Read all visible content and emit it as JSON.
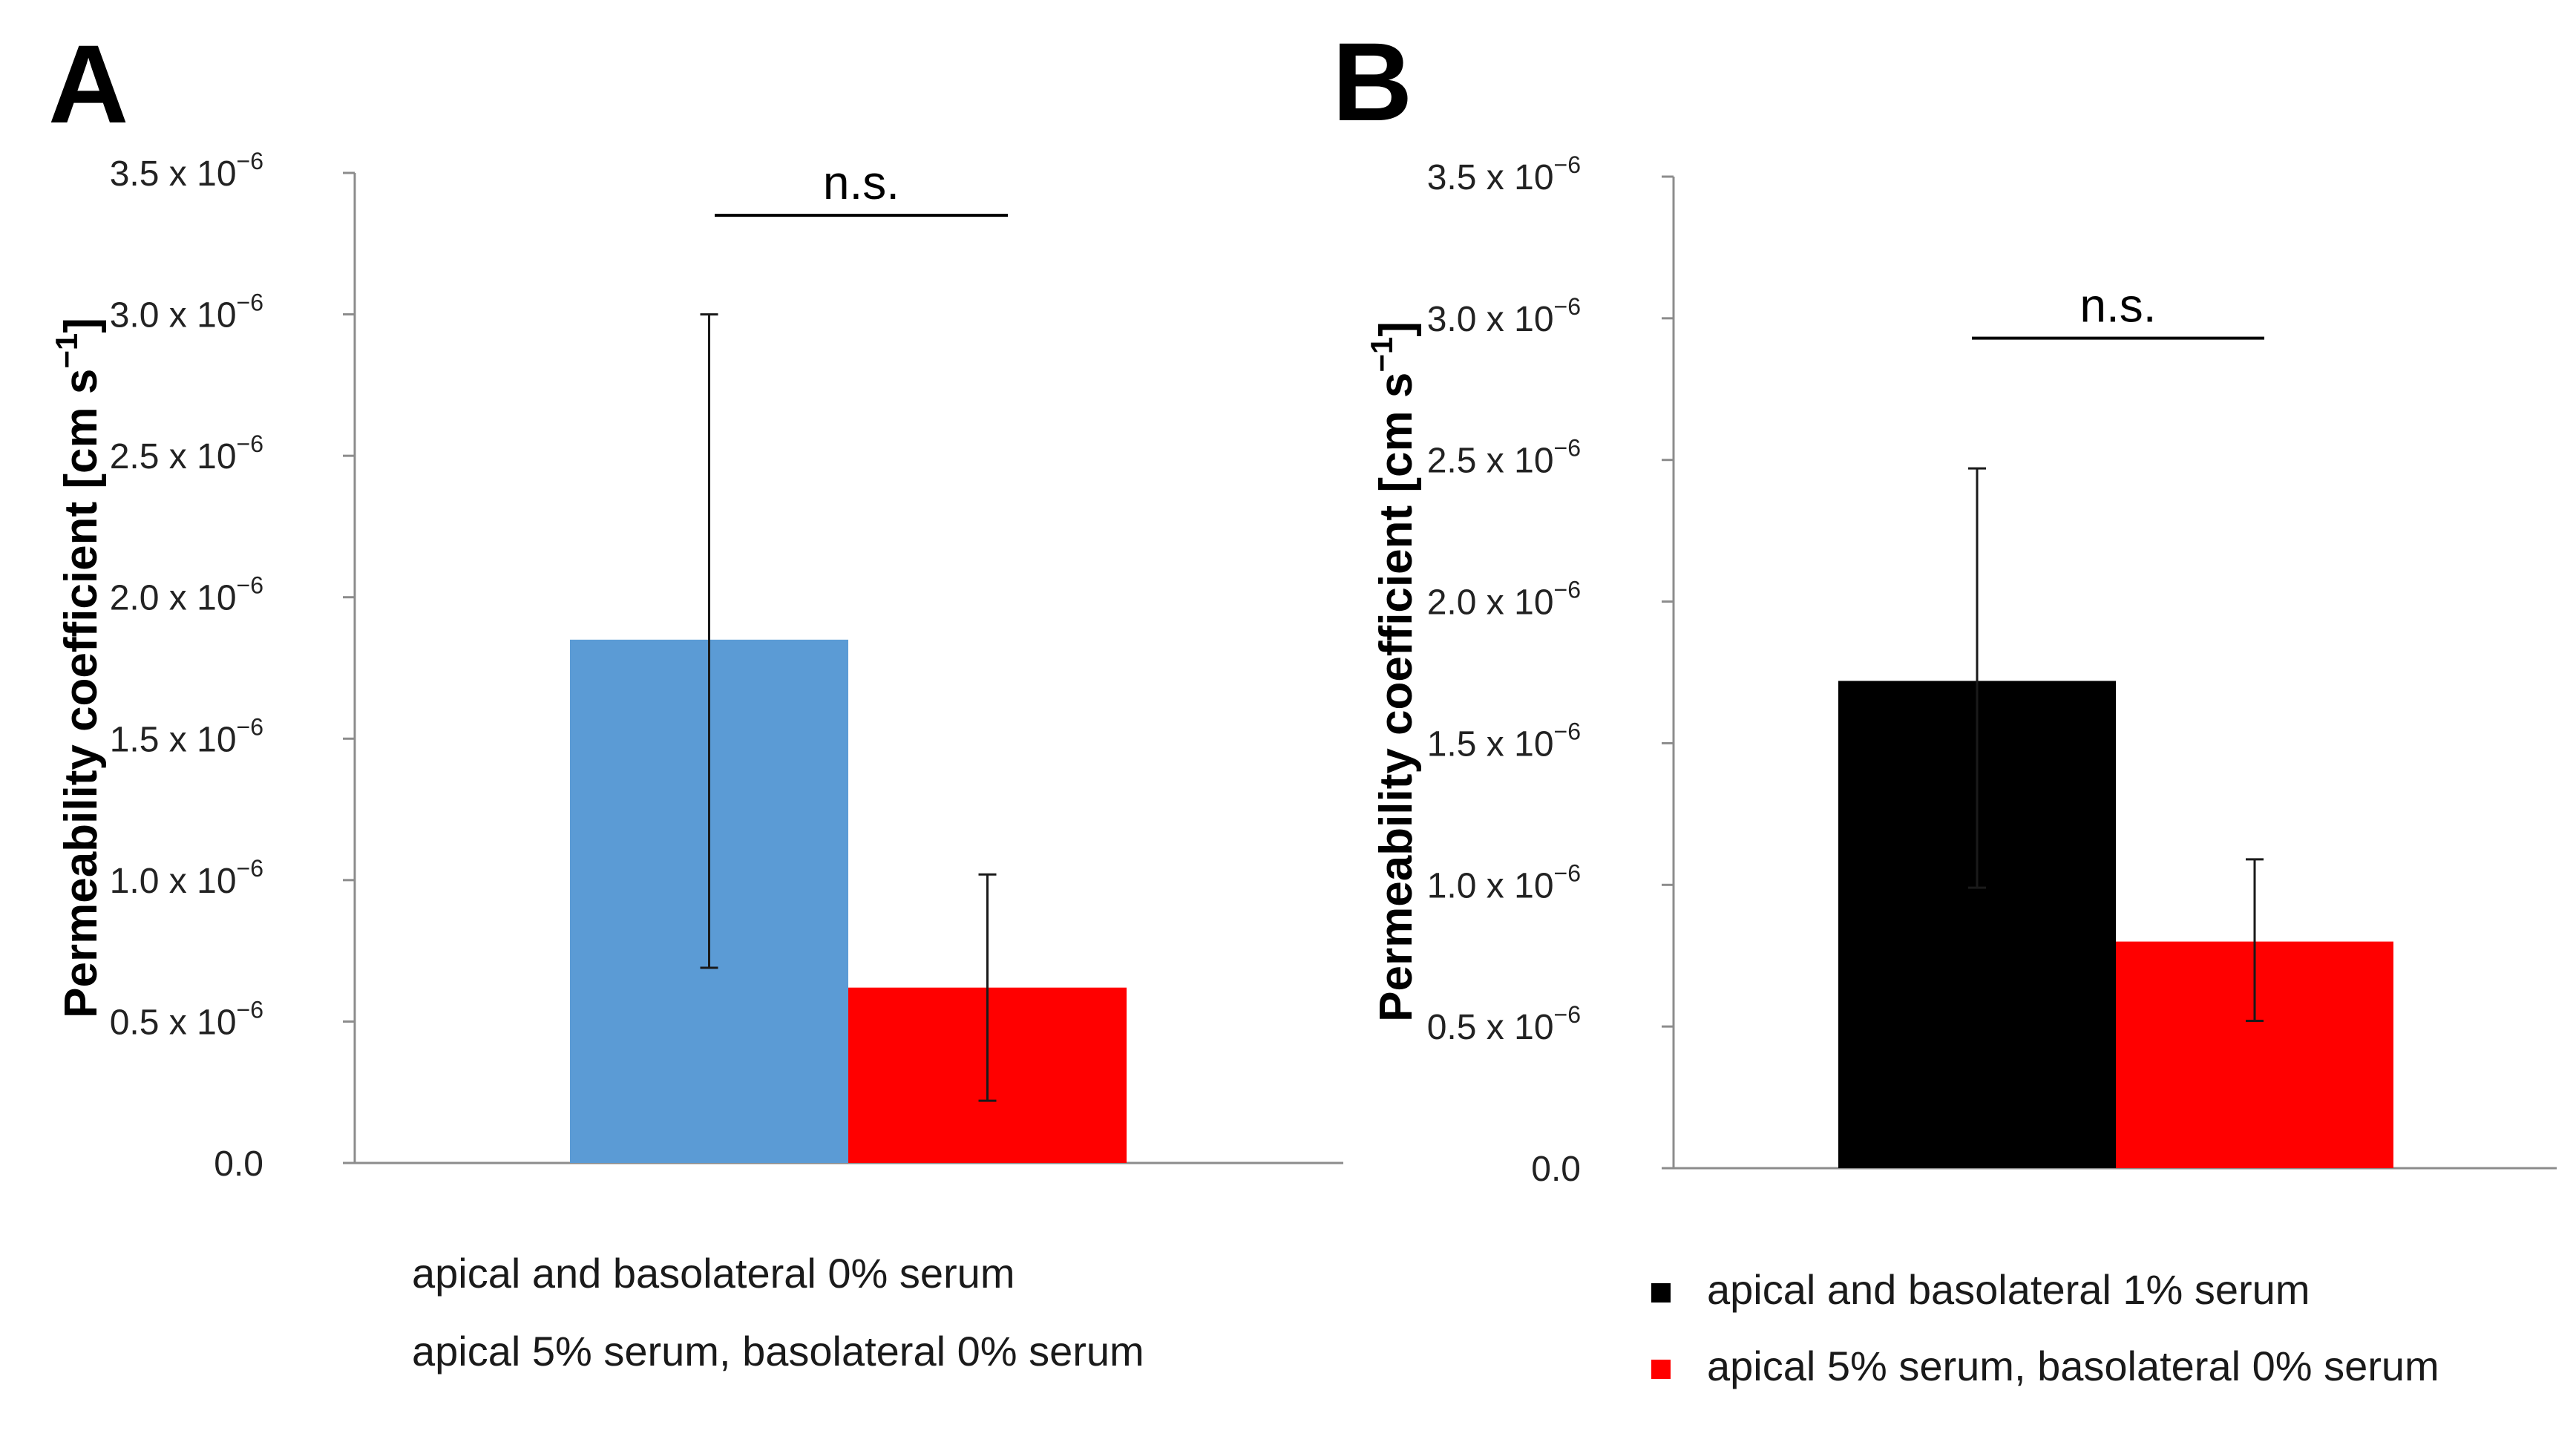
{
  "chart_data": [
    {
      "type": "bar",
      "panel_label": "A",
      "categories": [
        "apical and basolateral 0% serum",
        "apical 5% serum, basolateral 0% serum"
      ],
      "values": [
        1.85e-06,
        6.2e-07
      ],
      "error_high": [
        3e-06,
        1.02e-06
      ],
      "error_low": [
        6.9e-07,
        2.2e-07
      ],
      "colors": [
        "#5b9bd5",
        "#ff0000"
      ],
      "ylabel": "Permeability coefficient [cm s",
      "ylabel_sup": "−1",
      "ylabel_close": "]",
      "ylim": [
        0,
        3.5e-06
      ],
      "yticks": [
        {
          "value": 0,
          "mantissa": "0.0",
          "exp": ""
        },
        {
          "value": 5e-07,
          "mantissa": "0.5 x 10",
          "exp": "−6"
        },
        {
          "value": 1e-06,
          "mantissa": "1.0 x 10",
          "exp": "−6"
        },
        {
          "value": 1.5e-06,
          "mantissa": "1.5 x 10",
          "exp": "−6"
        },
        {
          "value": 2e-06,
          "mantissa": "2.0 x 10",
          "exp": "−6"
        },
        {
          "value": 2.5e-06,
          "mantissa": "2.5 x 10",
          "exp": "−6"
        },
        {
          "value": 3e-06,
          "mantissa": "3.0 x 10",
          "exp": "−6"
        },
        {
          "value": 3.5e-06,
          "mantissa": "3.5 x 10",
          "exp": "−6"
        }
      ],
      "significance": {
        "label": "n.s.",
        "value": 3.35e-06
      },
      "legend_markers": false
    },
    {
      "type": "bar",
      "panel_label": "B",
      "categories": [
        "apical and basolateral 1% serum",
        "apical 5% serum, basolateral 0% serum"
      ],
      "values": [
        1.72e-06,
        8e-07
      ],
      "error_high": [
        2.47e-06,
        1.09e-06
      ],
      "error_low": [
        9.9e-07,
        5.2e-07
      ],
      "colors": [
        "#000000",
        "#ff0000"
      ],
      "ylabel": "Permeability coefficient [cm s",
      "ylabel_sup": "−1",
      "ylabel_close": "]",
      "ylim": [
        0,
        3.5e-06
      ],
      "yticks": [
        {
          "value": 0,
          "mantissa": "0.0",
          "exp": ""
        },
        {
          "value": 5e-07,
          "mantissa": "0.5 x 10",
          "exp": "−6"
        },
        {
          "value": 1e-06,
          "mantissa": "1.0 x 10",
          "exp": "−6"
        },
        {
          "value": 1.5e-06,
          "mantissa": "1.5 x 10",
          "exp": "−6"
        },
        {
          "value": 2e-06,
          "mantissa": "2.0 x 10",
          "exp": "−6"
        },
        {
          "value": 2.5e-06,
          "mantissa": "2.5 x 10",
          "exp": "−6"
        },
        {
          "value": 3e-06,
          "mantissa": "3.0 x 10",
          "exp": "−6"
        },
        {
          "value": 3.5e-06,
          "mantissa": "3.5 x 10",
          "exp": "−6"
        }
      ],
      "significance": {
        "label": "n.s.",
        "value": 2.93e-06
      },
      "legend_markers": true
    }
  ]
}
